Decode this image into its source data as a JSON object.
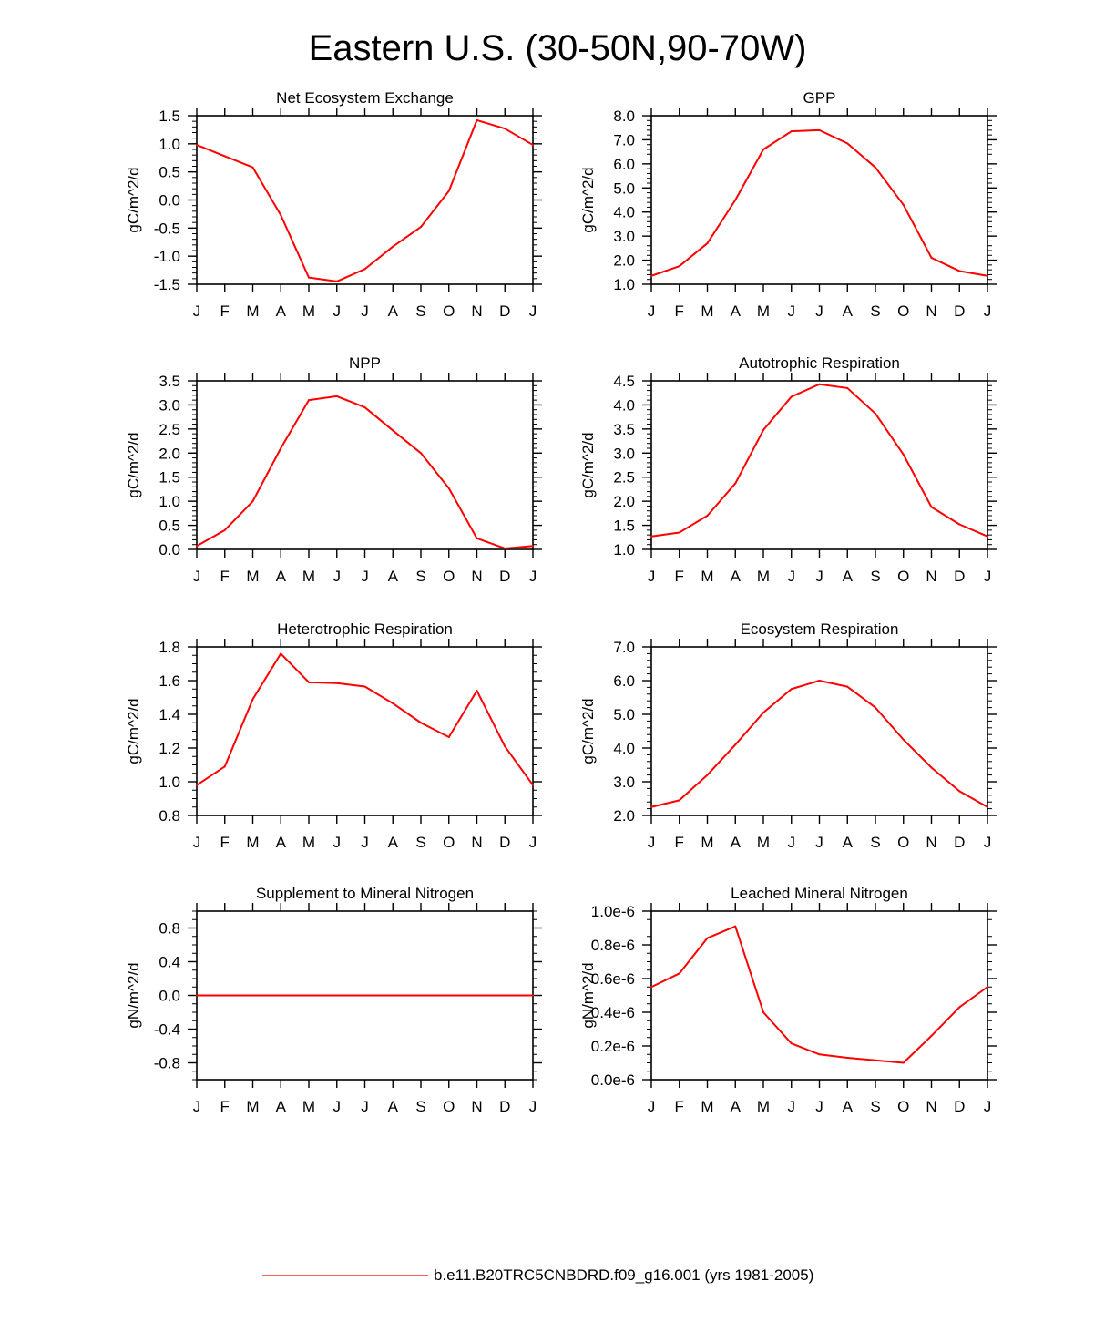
{
  "page_title": "Eastern U.S. (30-50N,90-70W)",
  "legend": {
    "label": "b.e11.B20TRC5CNBDRD.f09_g16.001 (yrs 1981-2005)",
    "line_color": "#ee2c2c"
  },
  "colors": {
    "series": "#ff0000",
    "axis": "#000000"
  },
  "chart_data": [
    {
      "type": "line",
      "title": "Net Ecosystem Exchange",
      "ylabel": "gC/m^2/d",
      "xlabel": "",
      "x_ticks": [
        "J",
        "F",
        "M",
        "A",
        "M",
        "J",
        "J",
        "A",
        "S",
        "O",
        "N",
        "D",
        "J"
      ],
      "ylim": [
        -1.5,
        1.5
      ],
      "y_ticks": [
        -1.5,
        -1.0,
        -0.5,
        0.0,
        0.5,
        1.0,
        1.5
      ],
      "y_tick_labels": [
        "-1.5",
        "-1.0",
        "-0.5",
        "0.0",
        "0.5",
        "1.0",
        "1.5"
      ],
      "y_minor_step": 0.1,
      "series": [
        {
          "name": "b.e11.B20TRC5CNBDRD.f09_g16.001 (yrs 1981-2005)",
          "values": [
            0.98,
            0.78,
            0.58,
            -0.27,
            -1.38,
            -1.45,
            -1.23,
            -0.83,
            -0.48,
            0.16,
            1.42,
            1.27,
            0.98
          ]
        }
      ]
    },
    {
      "type": "line",
      "title": "GPP",
      "ylabel": "gC/m^2/d",
      "xlabel": "",
      "x_ticks": [
        "J",
        "F",
        "M",
        "A",
        "M",
        "J",
        "J",
        "A",
        "S",
        "O",
        "N",
        "D",
        "J"
      ],
      "ylim": [
        1.0,
        8.0
      ],
      "y_ticks": [
        1.0,
        2.0,
        3.0,
        4.0,
        5.0,
        6.0,
        7.0,
        8.0
      ],
      "y_tick_labels": [
        "1.0",
        "2.0",
        "3.0",
        "4.0",
        "5.0",
        "6.0",
        "7.0",
        "8.0"
      ],
      "y_minor_step": 0.2,
      "series": [
        {
          "name": "b.e11.B20TRC5CNBDRD.f09_g16.001 (yrs 1981-2005)",
          "values": [
            1.35,
            1.75,
            2.7,
            4.5,
            6.6,
            7.35,
            7.4,
            6.85,
            5.85,
            4.3,
            2.1,
            1.55,
            1.35
          ]
        }
      ]
    },
    {
      "type": "line",
      "title": "NPP",
      "ylabel": "gC/m^2/d",
      "xlabel": "",
      "x_ticks": [
        "J",
        "F",
        "M",
        "A",
        "M",
        "J",
        "J",
        "A",
        "S",
        "O",
        "N",
        "D",
        "J"
      ],
      "ylim": [
        0.0,
        3.5
      ],
      "y_ticks": [
        0.0,
        0.5,
        1.0,
        1.5,
        2.0,
        2.5,
        3.0,
        3.5
      ],
      "y_tick_labels": [
        "0.0",
        "0.5",
        "1.0",
        "1.5",
        "2.0",
        "2.5",
        "3.0",
        "3.5"
      ],
      "y_minor_step": 0.1,
      "series": [
        {
          "name": "b.e11.B20TRC5CNBDRD.f09_g16.001 (yrs 1981-2005)",
          "values": [
            0.07,
            0.4,
            1.0,
            2.1,
            3.1,
            3.18,
            2.95,
            2.47,
            2.0,
            1.27,
            0.23,
            0.02,
            0.07
          ]
        }
      ]
    },
    {
      "type": "line",
      "title": "Autotrophic Respiration",
      "ylabel": "gC/m^2/d",
      "xlabel": "",
      "x_ticks": [
        "J",
        "F",
        "M",
        "A",
        "M",
        "J",
        "J",
        "A",
        "S",
        "O",
        "N",
        "D",
        "J"
      ],
      "ylim": [
        1.0,
        4.5
      ],
      "y_ticks": [
        1.0,
        1.5,
        2.0,
        2.5,
        3.0,
        3.5,
        4.0,
        4.5
      ],
      "y_tick_labels": [
        "1.0",
        "1.5",
        "2.0",
        "2.5",
        "3.0",
        "3.5",
        "4.0",
        "4.5"
      ],
      "y_minor_step": 0.1,
      "series": [
        {
          "name": "b.e11.B20TRC5CNBDRD.f09_g16.001 (yrs 1981-2005)",
          "values": [
            1.27,
            1.35,
            1.7,
            2.37,
            3.48,
            4.17,
            4.43,
            4.35,
            3.82,
            2.97,
            1.88,
            1.52,
            1.27
          ]
        }
      ]
    },
    {
      "type": "line",
      "title": "Heterotrophic Respiration",
      "ylabel": "gC/m^2/d",
      "xlabel": "",
      "x_ticks": [
        "J",
        "F",
        "M",
        "A",
        "M",
        "J",
        "J",
        "A",
        "S",
        "O",
        "N",
        "D",
        "J"
      ],
      "ylim": [
        0.8,
        1.8
      ],
      "y_ticks": [
        0.8,
        1.0,
        1.2,
        1.4,
        1.6,
        1.8
      ],
      "y_tick_labels": [
        "0.8",
        "1.0",
        "1.2",
        "1.4",
        "1.6",
        "1.8"
      ],
      "y_minor_step": 0.05,
      "series": [
        {
          "name": "b.e11.B20TRC5CNBDRD.f09_g16.001 (yrs 1981-2005)",
          "values": [
            0.98,
            1.09,
            1.49,
            1.76,
            1.59,
            1.585,
            1.565,
            1.465,
            1.35,
            1.265,
            1.54,
            1.21,
            0.98
          ]
        }
      ]
    },
    {
      "type": "line",
      "title": "Ecosystem Respiration",
      "ylabel": "gC/m^2/d",
      "xlabel": "",
      "x_ticks": [
        "J",
        "F",
        "M",
        "A",
        "M",
        "J",
        "J",
        "A",
        "S",
        "O",
        "N",
        "D",
        "J"
      ],
      "ylim": [
        2.0,
        7.0
      ],
      "y_ticks": [
        2.0,
        3.0,
        4.0,
        5.0,
        6.0,
        7.0
      ],
      "y_tick_labels": [
        "2.0",
        "3.0",
        "4.0",
        "5.0",
        "6.0",
        "7.0"
      ],
      "y_minor_step": 0.2,
      "series": [
        {
          "name": "b.e11.B20TRC5CNBDRD.f09_g16.001 (yrs 1981-2005)",
          "values": [
            2.25,
            2.45,
            3.2,
            4.1,
            5.05,
            5.75,
            6.0,
            5.82,
            5.2,
            4.25,
            3.42,
            2.72,
            2.25
          ]
        }
      ]
    },
    {
      "type": "line",
      "title": "Supplement to Mineral Nitrogen",
      "ylabel": "gN/m^2/d",
      "xlabel": "",
      "x_ticks": [
        "J",
        "F",
        "M",
        "A",
        "M",
        "J",
        "J",
        "A",
        "S",
        "O",
        "N",
        "D",
        "J"
      ],
      "ylim": [
        -1.0,
        1.0
      ],
      "y_ticks": [
        -0.8,
        -0.4,
        0.0,
        0.4,
        0.8
      ],
      "y_tick_labels": [
        "-0.8",
        "-0.4",
        "0.0",
        "0.4",
        "0.8"
      ],
      "y_minor_step": 0.1,
      "series": [
        {
          "name": "b.e11.B20TRC5CNBDRD.f09_g16.001 (yrs 1981-2005)",
          "values": [
            0,
            0,
            0,
            0,
            0,
            0,
            0,
            0,
            0,
            0,
            0,
            0,
            0
          ]
        }
      ]
    },
    {
      "type": "line",
      "title": "Leached Mineral Nitrogen",
      "ylabel": "gN/m^2/d",
      "xlabel": "",
      "x_ticks": [
        "J",
        "F",
        "M",
        "A",
        "M",
        "J",
        "J",
        "A",
        "S",
        "O",
        "N",
        "D",
        "J"
      ],
      "ylim": [
        0.0,
        1e-06
      ],
      "y_ticks": [
        0.0,
        2e-07,
        4e-07,
        6e-07,
        8e-07,
        1e-06
      ],
      "y_tick_labels": [
        "0.0e-6",
        "0.2e-6",
        "0.4e-6",
        "0.6e-6",
        "0.8e-6",
        "1.0e-6"
      ],
      "y_minor_step": 5e-08,
      "series": [
        {
          "name": "b.e11.B20TRC5CNBDRD.f09_g16.001 (yrs 1981-2005)",
          "values": [
            5.5e-07,
            6.3e-07,
            8.4e-07,
            9.1e-07,
            4e-07,
            2.15e-07,
            1.5e-07,
            1.3e-07,
            1.15e-07,
            1e-07,
            2.6e-07,
            4.3e-07,
            5.5e-07
          ]
        }
      ]
    }
  ]
}
